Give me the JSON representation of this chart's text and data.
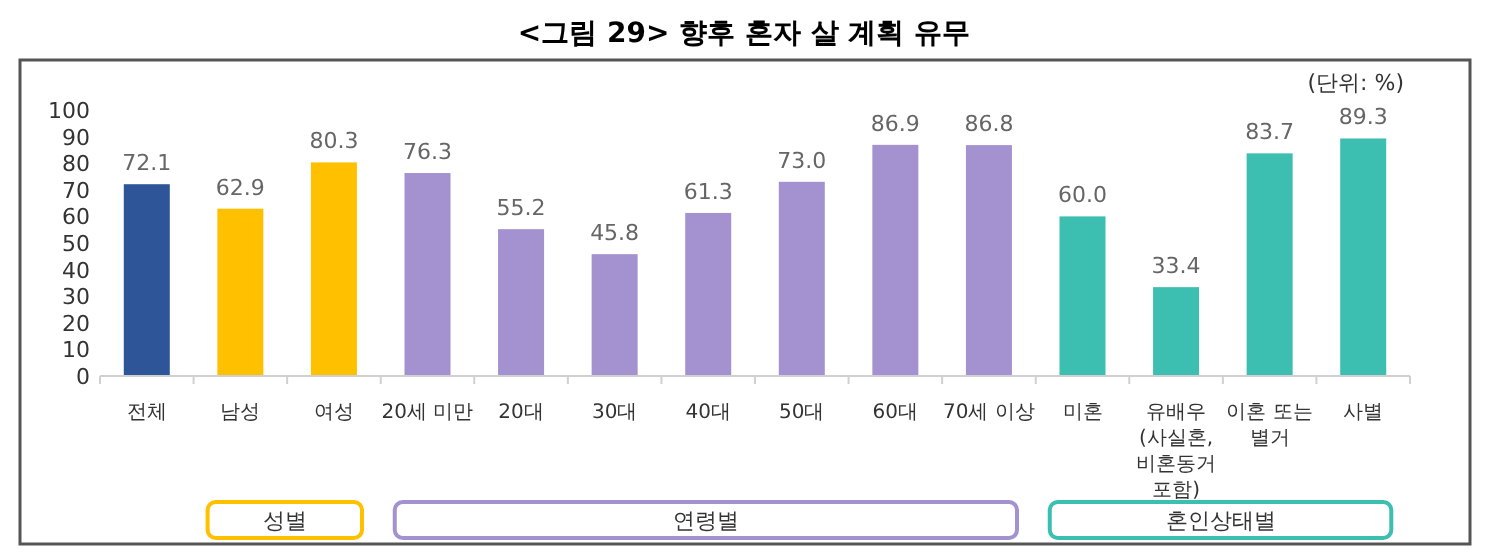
{
  "chart_data": {
    "type": "bar",
    "title": "<그림 29> 향후 혼자 살 계획 유무",
    "categories": [
      "전체",
      "남성",
      "여성",
      "20세 미만",
      "20대",
      "30대",
      "40대",
      "50대",
      "60대",
      "70세 이상",
      "미혼",
      "유배우\n(사실혼,\n비혼동거\n포함)",
      "이혼 또는\n별거",
      "사별"
    ],
    "values": [
      72.1,
      62.9,
      80.3,
      76.3,
      55.2,
      45.8,
      61.3,
      73.0,
      86.9,
      86.8,
      60.0,
      33.4,
      83.7,
      89.3
    ],
    "value_labels": [
      "72.1",
      "62.9",
      "80.3",
      "76.3",
      "55.2",
      "45.8",
      "61.3",
      "73.0",
      "86.9",
      "86.8",
      "60.0",
      "33.4",
      "83.7",
      "89.3"
    ],
    "colors": [
      "#2e5597",
      "#ffc000",
      "#ffc000",
      "#a391d0",
      "#a391d0",
      "#a391d0",
      "#a391d0",
      "#a391d0",
      "#a391d0",
      "#a391d0",
      "#3cbfb0",
      "#3cbfb0",
      "#3cbfb0",
      "#3cbfb0"
    ],
    "ylim": [
      0,
      100
    ],
    "yticks": [
      0,
      10,
      20,
      30,
      40,
      50,
      60,
      70,
      80,
      90,
      100
    ],
    "annotations": [
      "(단위: %)",
      "성별",
      "연령별",
      "혼인상태별"
    ]
  }
}
